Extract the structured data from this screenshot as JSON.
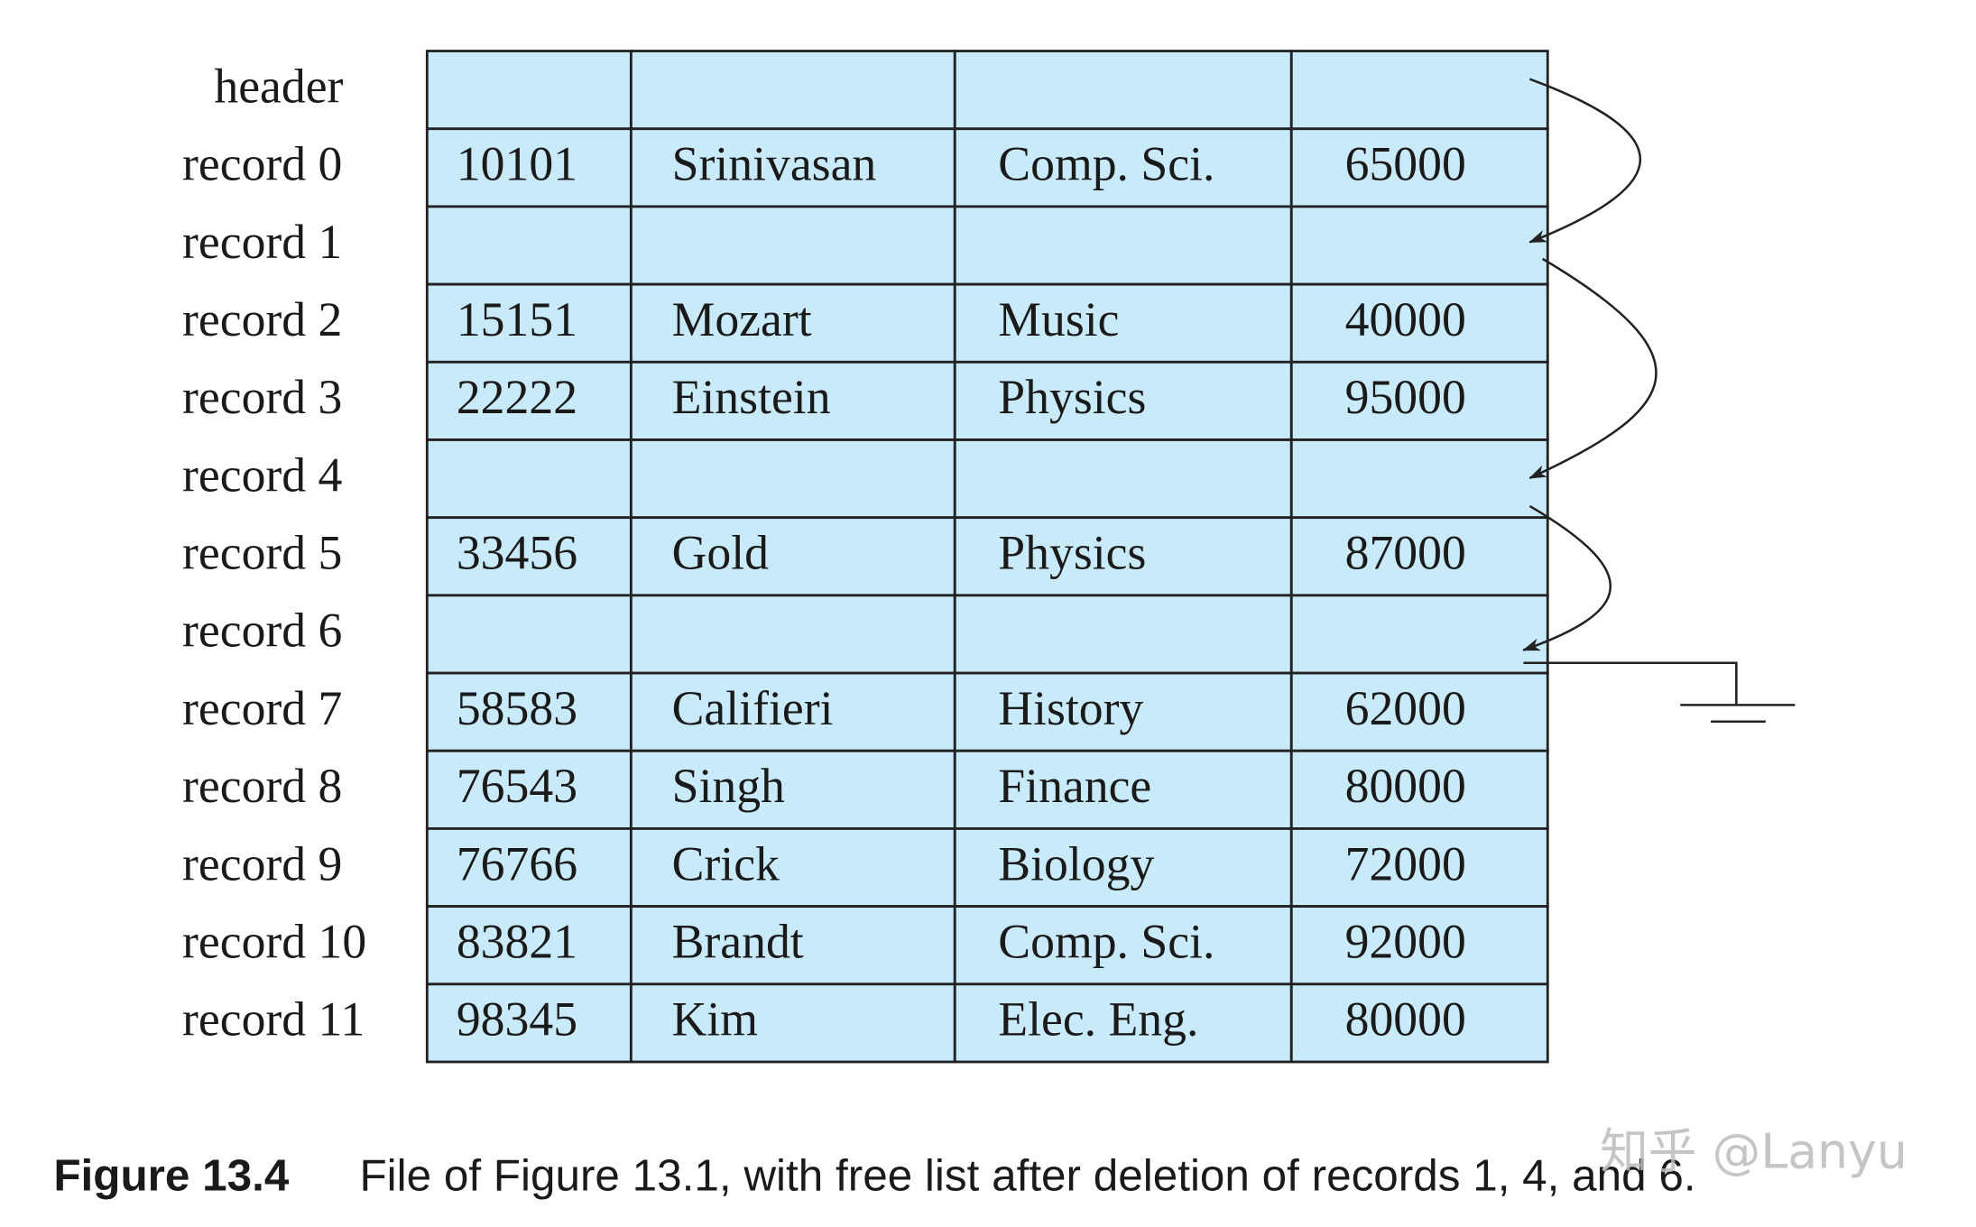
{
  "rows": [
    {
      "label": "header"
    },
    {
      "label": "record 0",
      "cells": [
        "10101",
        "Srinivasan",
        "Comp. Sci.",
        "65000"
      ]
    },
    {
      "label": "record 1"
    },
    {
      "label": "record 2",
      "cells": [
        "15151",
        "Mozart",
        "Music",
        "40000"
      ]
    },
    {
      "label": "record 3",
      "cells": [
        "22222",
        "Einstein",
        "Physics",
        "95000"
      ]
    },
    {
      "label": "record 4"
    },
    {
      "label": "record 5",
      "cells": [
        "33456",
        "Gold",
        "Physics",
        "87000"
      ]
    },
    {
      "label": "record 6"
    },
    {
      "label": "record 7",
      "cells": [
        "58583",
        "Califieri",
        "History",
        "62000"
      ]
    },
    {
      "label": "record 8",
      "cells": [
        "76543",
        "Singh",
        "Finance",
        "80000"
      ]
    },
    {
      "label": "record 9",
      "cells": [
        "76766",
        "Crick",
        "Biology",
        "72000"
      ]
    },
    {
      "label": "record 10",
      "cells": [
        "83821",
        "Brandt",
        "Comp. Sci.",
        "92000"
      ]
    },
    {
      "label": "record 11",
      "cells": [
        "98345",
        "Kim",
        "Elec. Eng.",
        "80000"
      ]
    }
  ],
  "caption": {
    "number": "Figure 13.4",
    "text": "File of Figure 13.1, with free list after deletion of records 1, 4, and 6."
  },
  "watermark": "知乎 @Lanyu"
}
